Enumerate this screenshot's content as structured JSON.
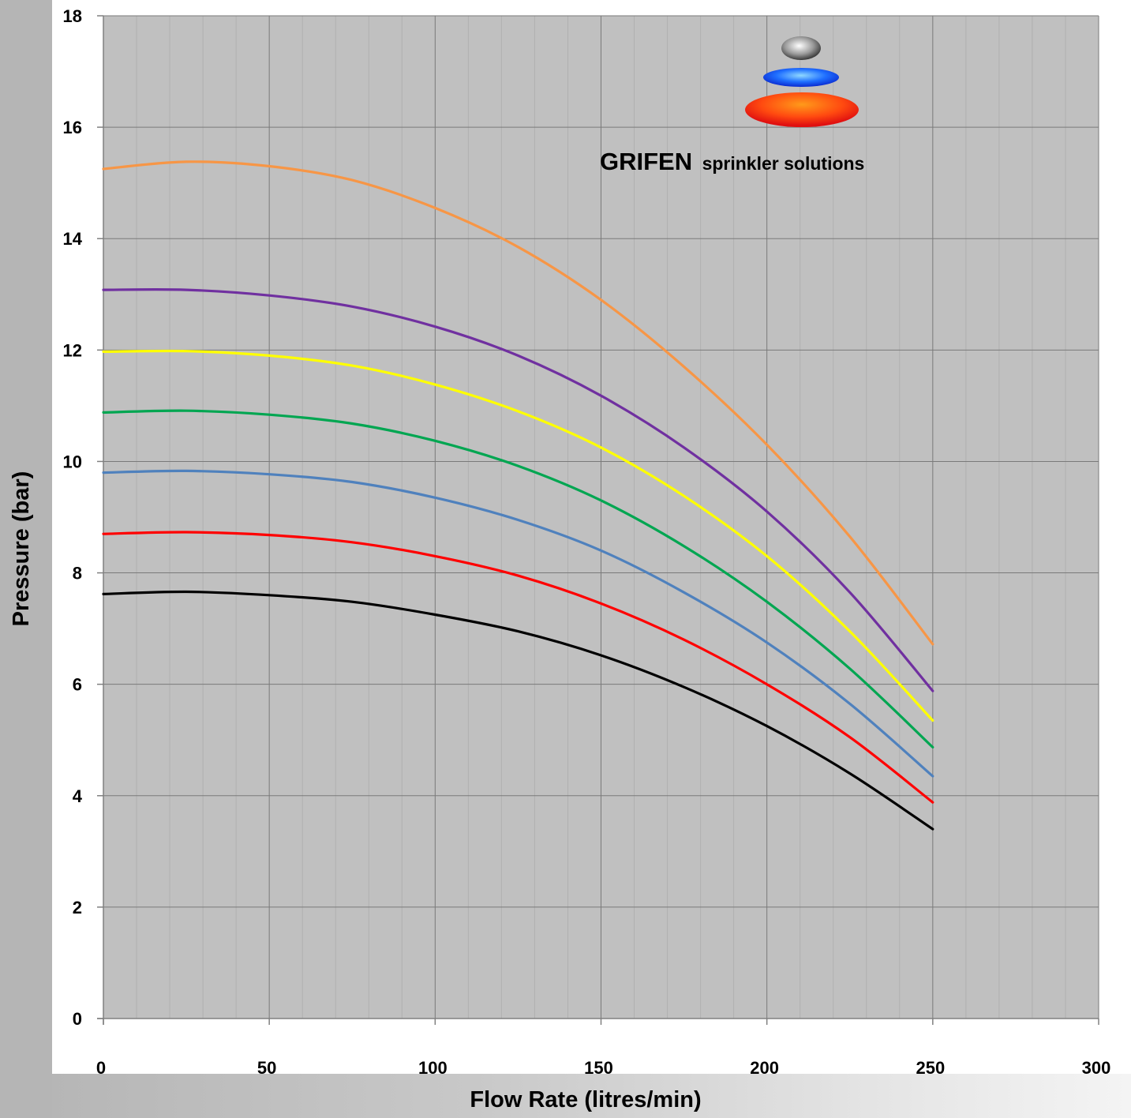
{
  "chart_data": {
    "type": "line",
    "title": "",
    "xlabel": "Flow Rate (litres/min)",
    "ylabel": "Pressure (bar)",
    "xlim": [
      0,
      300
    ],
    "ylim": [
      0,
      18
    ],
    "x_ticks": [
      0,
      50,
      100,
      150,
      200,
      250,
      300
    ],
    "y_ticks": [
      0,
      2,
      4,
      6,
      8,
      10,
      12,
      14,
      16,
      18
    ],
    "grid": true,
    "legend": "none",
    "background_color": "#c0c0c0",
    "series": [
      {
        "color": "#000000",
        "x": [
          0,
          25,
          50,
          75,
          100,
          125,
          150,
          175,
          200,
          225,
          250
        ],
        "y": [
          7.62,
          7.66,
          7.6,
          7.48,
          7.25,
          6.95,
          6.52,
          5.95,
          5.25,
          4.4,
          3.4
        ]
      },
      {
        "color": "#ff0000",
        "x": [
          0,
          25,
          50,
          75,
          100,
          125,
          150,
          175,
          200,
          225,
          250
        ],
        "y": [
          8.7,
          8.73,
          8.68,
          8.55,
          8.3,
          7.95,
          7.45,
          6.8,
          6.0,
          5.05,
          3.88
        ]
      },
      {
        "color": "#4f81bd",
        "x": [
          0,
          25,
          50,
          75,
          100,
          125,
          150,
          175,
          200,
          225,
          250
        ],
        "y": [
          9.8,
          9.83,
          9.77,
          9.63,
          9.35,
          8.95,
          8.4,
          7.65,
          6.75,
          5.65,
          4.35
        ]
      },
      {
        "color": "#00a651",
        "x": [
          0,
          25,
          50,
          75,
          100,
          125,
          150,
          175,
          200,
          225,
          250
        ],
        "y": [
          10.88,
          10.91,
          10.84,
          10.68,
          10.37,
          9.92,
          9.3,
          8.48,
          7.48,
          6.28,
          4.87
        ]
      },
      {
        "color": "#ffff00",
        "x": [
          0,
          25,
          50,
          75,
          100,
          125,
          150,
          175,
          200,
          225,
          250
        ],
        "y": [
          11.97,
          11.98,
          11.9,
          11.72,
          11.38,
          10.9,
          10.25,
          9.38,
          8.3,
          6.95,
          5.35
        ]
      },
      {
        "color": "#7030a0",
        "x": [
          0,
          25,
          50,
          75,
          100,
          125,
          150,
          175,
          200,
          225,
          250
        ],
        "y": [
          13.08,
          13.08,
          12.98,
          12.78,
          12.42,
          11.9,
          11.18,
          10.25,
          9.1,
          7.65,
          5.88
        ]
      },
      {
        "color": "#f79646",
        "x": [
          0,
          25,
          50,
          75,
          100,
          125,
          150,
          175,
          200,
          225,
          250
        ],
        "y": [
          15.25,
          15.38,
          15.3,
          15.05,
          14.55,
          13.85,
          12.9,
          11.7,
          10.3,
          8.65,
          6.72
        ]
      }
    ]
  },
  "logo": {
    "name": "GRIFEN",
    "tagline": "sprinkler solutions"
  }
}
